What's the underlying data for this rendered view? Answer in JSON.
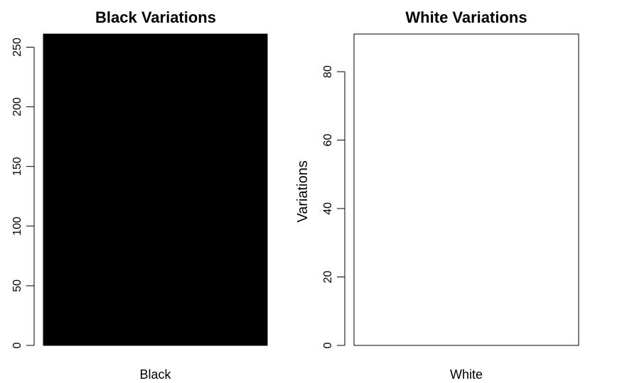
{
  "chart_data": [
    {
      "type": "bar",
      "title": "Black Variations",
      "categories": [
        "Black"
      ],
      "values": [
        261
      ],
      "bar_color": "#000000",
      "ylabel": "",
      "xlabel": "",
      "ylim": [
        0,
        261
      ],
      "yticks": [
        0,
        50,
        100,
        150,
        200,
        250
      ],
      "grid": false
    },
    {
      "type": "bar",
      "title": "White Variations",
      "categories": [
        "White"
      ],
      "values": [
        91
      ],
      "bar_color": "#ffffff",
      "ylabel": "Variations",
      "xlabel": "",
      "ylim": [
        0,
        91
      ],
      "yticks": [
        0,
        20,
        40,
        60,
        80
      ],
      "grid": false
    }
  ]
}
